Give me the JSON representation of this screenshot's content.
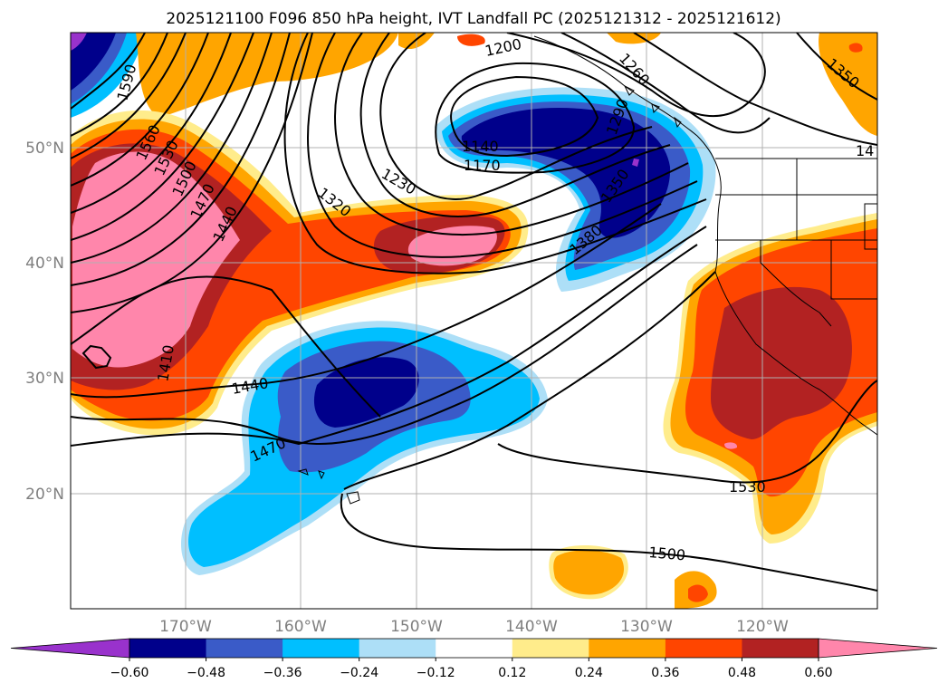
{
  "title": "2025121100 F096 850 hPa height, IVT Landfall PC (2025121312 - 2025121612)",
  "lat_labels": [
    "50°N",
    "40°N",
    "30°N",
    "20°N"
  ],
  "lon_labels": [
    "170°W",
    "160°W",
    "150°W",
    "140°W",
    "130°W",
    "120°W"
  ],
  "colorbar": {
    "colors": [
      "#9932CC",
      "#00008B",
      "#3A5BC8",
      "#00BFFF",
      "#ADDFF7",
      "#FFFFFF",
      "#FFEC8B",
      "#FFA500",
      "#FF4500",
      "#B22222",
      "#FF86AB"
    ],
    "ticks": [
      "−0.60",
      "−0.48",
      "−0.36",
      "−0.24",
      "−0.12",
      "0.12",
      "0.24",
      "0.36",
      "0.48",
      "0.60"
    ]
  },
  "contour_labels": [
    "1590",
    "1560",
    "1530",
    "1500",
    "1470",
    "1440",
    "1410",
    "1320",
    "1230",
    "1200",
    "1140",
    "1170",
    "1260",
    "1290",
    "1350",
    "1380",
    "1440",
    "1470",
    "1500",
    "1530",
    "1350",
    "14"
  ]
}
